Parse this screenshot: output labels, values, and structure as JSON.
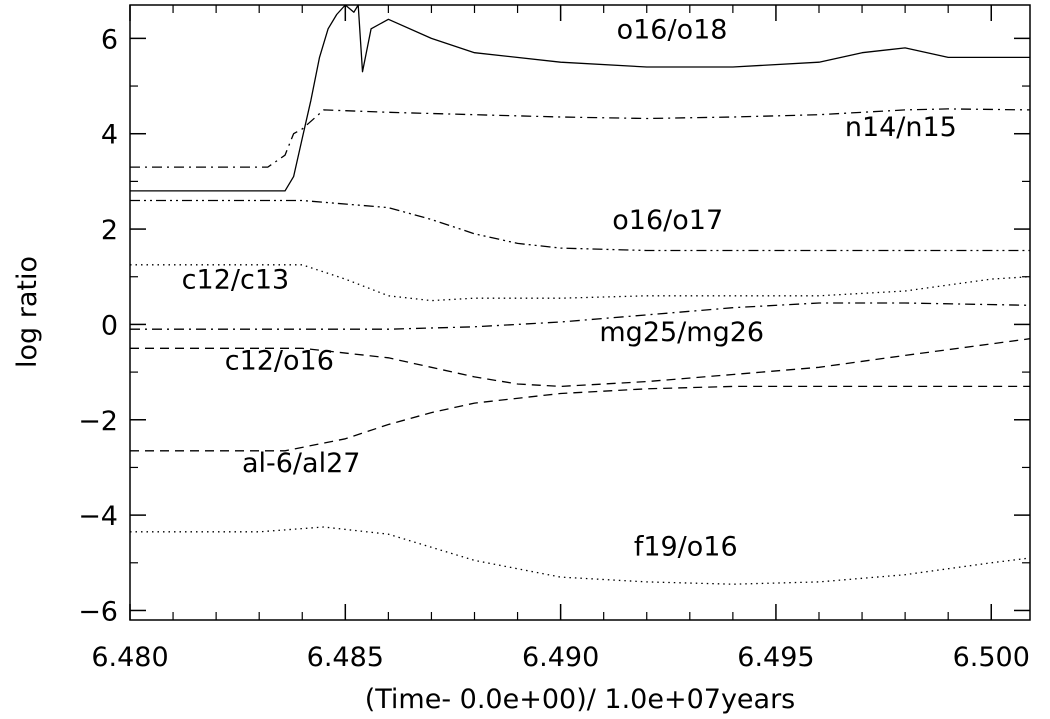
{
  "chart_data": {
    "type": "line",
    "title": "",
    "xlabel": "(Time- 0.0e+00)/ 1.0e+07years",
    "ylabel": "log ratio",
    "xlim": [
      6.48,
      6.5009
    ],
    "ylim": [
      -6.2,
      6.7
    ],
    "x_ticks": [
      6.48,
      6.485,
      6.49,
      6.495,
      6.5
    ],
    "x_tick_labels": [
      "6.480",
      "6.485",
      "6.490",
      "6.495",
      "6.500"
    ],
    "y_ticks": [
      -6,
      -4,
      -2,
      0,
      2,
      4,
      6
    ],
    "y_tick_labels": [
      "−6",
      "−4",
      "−2",
      "0",
      "2",
      "4",
      "6"
    ],
    "grid": false,
    "legend": "none",
    "line_color": "#000000",
    "series": [
      {
        "name": "o16/o18",
        "dash": "solid",
        "x": [
          6.48,
          6.4836,
          6.4838,
          6.484,
          6.4842,
          6.4844,
          6.4846,
          6.4848,
          6.485,
          6.4852,
          6.4853,
          6.4854,
          6.4856,
          6.486,
          6.487,
          6.488,
          6.49,
          6.492,
          6.494,
          6.496,
          6.497,
          6.498,
          6.499,
          6.5009
        ],
        "y": [
          2.8,
          2.8,
          3.1,
          3.9,
          4.7,
          5.6,
          6.2,
          6.5,
          6.7,
          6.55,
          6.7,
          5.3,
          6.2,
          6.4,
          6.0,
          5.7,
          5.5,
          5.4,
          5.4,
          5.5,
          5.7,
          5.8,
          5.6,
          5.6
        ]
      },
      {
        "name": "n14/n15",
        "dash": "dash-dot",
        "x": [
          6.48,
          6.4832,
          6.4836,
          6.4838,
          6.484,
          6.4845,
          6.486,
          6.488,
          6.49,
          6.492,
          6.494,
          6.496,
          6.498,
          6.499,
          6.5009
        ],
        "y": [
          3.3,
          3.3,
          3.55,
          4.0,
          4.1,
          4.5,
          4.45,
          4.4,
          4.35,
          4.32,
          4.35,
          4.4,
          4.5,
          4.52,
          4.5
        ]
      },
      {
        "name": "o16/o17",
        "dash": "dash-dot-dot",
        "x": [
          6.48,
          6.484,
          6.486,
          6.487,
          6.488,
          6.489,
          6.49,
          6.492,
          6.494,
          6.496,
          6.498,
          6.5009
        ],
        "y": [
          2.6,
          2.6,
          2.45,
          2.2,
          1.9,
          1.7,
          1.6,
          1.55,
          1.55,
          1.55,
          1.55,
          1.55
        ]
      },
      {
        "name": "c12/c13",
        "dash": "dotted",
        "x": [
          6.48,
          6.484,
          6.485,
          6.486,
          6.487,
          6.488,
          6.49,
          6.492,
          6.494,
          6.496,
          6.498,
          6.5,
          6.5009
        ],
        "y": [
          1.25,
          1.25,
          0.95,
          0.6,
          0.5,
          0.55,
          0.55,
          0.6,
          0.6,
          0.6,
          0.7,
          0.95,
          1.0
        ]
      },
      {
        "name": "mg25/mg26",
        "dash": "dash-dot",
        "x": [
          6.48,
          6.486,
          6.488,
          6.49,
          6.492,
          6.494,
          6.496,
          6.498,
          6.5009
        ],
        "y": [
          -0.1,
          -0.1,
          -0.05,
          0.05,
          0.2,
          0.35,
          0.45,
          0.45,
          0.4
        ]
      },
      {
        "name": "c12/o16",
        "dash": "dashed",
        "x": [
          6.48,
          6.484,
          6.486,
          6.488,
          6.489,
          6.49,
          6.492,
          6.494,
          6.496,
          6.498,
          6.5009
        ],
        "y": [
          -0.5,
          -0.5,
          -0.7,
          -1.1,
          -1.25,
          -1.3,
          -1.2,
          -1.05,
          -0.9,
          -0.65,
          -0.3
        ]
      },
      {
        "name": "al-6/al27",
        "dash": "dashed",
        "x": [
          6.48,
          6.4836,
          6.485,
          6.486,
          6.487,
          6.488,
          6.49,
          6.492,
          6.494,
          6.496,
          6.498,
          6.5009
        ],
        "y": [
          -2.65,
          -2.65,
          -2.4,
          -2.1,
          -1.85,
          -1.65,
          -1.45,
          -1.35,
          -1.3,
          -1.3,
          -1.3,
          -1.3
        ]
      },
      {
        "name": "f19/o16",
        "dash": "dotted",
        "x": [
          6.48,
          6.483,
          6.4845,
          6.486,
          6.488,
          6.49,
          6.492,
          6.494,
          6.496,
          6.498,
          6.5,
          6.5009
        ],
        "y": [
          -4.35,
          -4.35,
          -4.25,
          -4.4,
          -4.95,
          -5.3,
          -5.4,
          -5.45,
          -5.4,
          -5.25,
          -5.0,
          -4.9
        ]
      }
    ],
    "labels": [
      {
        "series": "o16/o18",
        "text": "o16/o18",
        "x": 6.4913,
        "y": 6.0
      },
      {
        "series": "n14/n15",
        "text": "n14/n15",
        "x": 6.4966,
        "y": 3.95
      },
      {
        "series": "o16/o17",
        "text": "o16/o17",
        "x": 6.4912,
        "y": 2.0
      },
      {
        "series": "c12/c13",
        "text": "c12/c13",
        "x": 6.4812,
        "y": 0.75
      },
      {
        "series": "mg25/mg26",
        "text": "mg25/mg26",
        "x": 6.4909,
        "y": -0.35
      },
      {
        "series": "c12/o16",
        "text": "c12/o16",
        "x": 6.4822,
        "y": -0.95
      },
      {
        "series": "al-6/al27",
        "text": "al-6/al27",
        "x": 6.4826,
        "y": -3.1
      },
      {
        "series": "f19/o16",
        "text": "f19/o16",
        "x": 6.4917,
        "y": -4.85
      }
    ]
  }
}
